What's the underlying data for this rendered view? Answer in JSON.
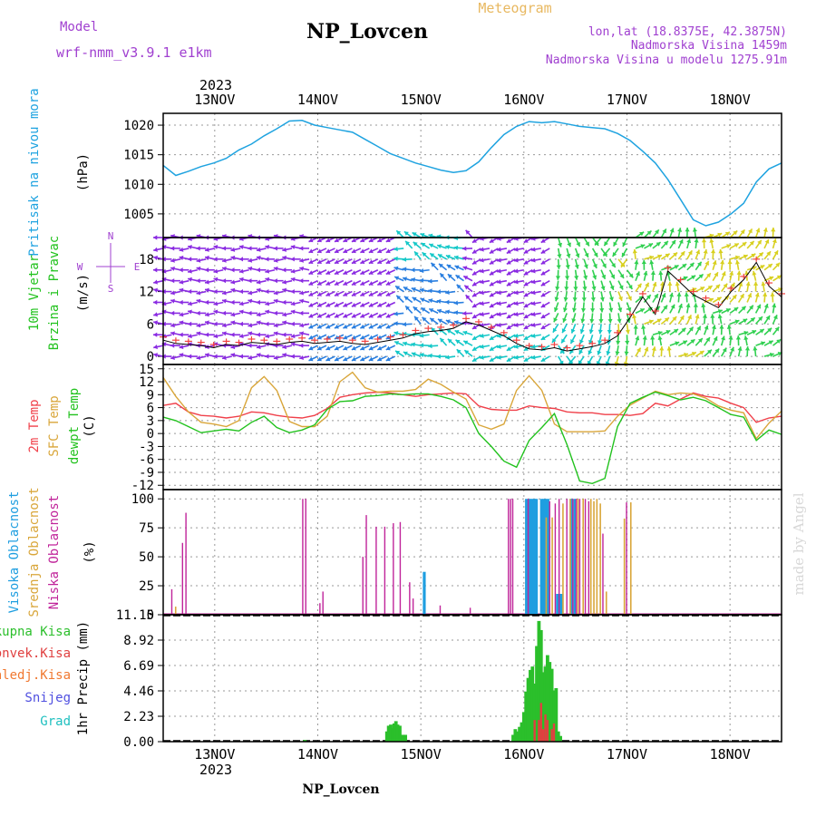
{
  "header": {
    "model_label": "Model",
    "model_value": "wrf-nmm_v3.9.1 e1km",
    "station_title": "NP_Lovcen",
    "meteogram_label": "Meteogram",
    "lonlat": "lon,lat (18.8375E, 42.3875N)",
    "altitude": "Nadmorska Visina 1459m",
    "model_altitude": "Nadmorska Visina u modelu 1275.91m"
  },
  "footer": {
    "station": "NP_Lovcen",
    "credit": "made by Angel"
  },
  "colors": {
    "pressure": "#1fa3e0",
    "t2m": "#f0404a",
    "sfc": "#d9a63a",
    "dewpt": "#22c21e",
    "cloud_high": "#1f9ee0",
    "cloud_mid": "#d9a63a",
    "cloud_low": "#c0249a",
    "rain_total": "#2bbf2b",
    "rain_conv": "#e04040",
    "rain_frz": "#f07830",
    "snow": "#5050e0",
    "hail": "#20c0c0",
    "wind_purple": "#8a2be2",
    "wind_blue": "#2a7fe0",
    "wind_cyan": "#14c8c8",
    "wind_green": "#30d050",
    "wind_yellow": "#d8d020",
    "speed_line": "#000000",
    "gust_marks": "#f04040"
  },
  "chart_data": [
    {
      "type": "line",
      "name": "pressure",
      "ylabel_1": "Pritisak na nivou mora",
      "ylabel_2": "(hPa)",
      "yticks": [
        1005,
        1010,
        1015,
        1020
      ],
      "ylim": [
        1001,
        1022
      ],
      "x_hours_start": 0,
      "x_hours_end": 144,
      "x_top_dates": [
        "13NOV",
        "14NOV",
        "15NOV",
        "16NOV",
        "17NOV",
        "18NOV"
      ],
      "x_top_year": "2023",
      "grid": true,
      "series": [
        {
          "values": [
            1013.2,
            1011.5,
            1012.2,
            1013.0,
            1013.6,
            1014.4,
            1015.8,
            1016.8,
            1018.2,
            1019.4,
            1020.7,
            1020.8,
            1020.0,
            1019.6,
            1019.2,
            1018.8,
            1017.6,
            1016.4,
            1015.2,
            1014.4,
            1013.6,
            1013.0,
            1012.4,
            1012.0,
            1012.3,
            1013.8,
            1016.2,
            1018.4,
            1019.8,
            1020.6,
            1020.4,
            1020.6,
            1020.2,
            1019.8,
            1019.6,
            1019.4,
            1018.6,
            1017.4,
            1015.6,
            1013.6,
            1010.8,
            1007.4,
            1004.0,
            1003.0,
            1003.6,
            1005.0,
            1006.8,
            1010.4,
            1012.6,
            1013.6
          ]
        }
      ]
    },
    {
      "type": "wind",
      "name": "wind",
      "ylabel_1": "10m Vjetar",
      "ylabel_2": "Brzina i Pravac",
      "ylabel_3": "(m/s)",
      "compass": [
        "N",
        "E",
        "S",
        "W"
      ],
      "yticks": [
        0,
        6,
        12,
        18
      ],
      "ylim": [
        -1.5,
        22
      ],
      "levels": [
        0,
        2,
        4,
        6,
        8,
        10,
        12,
        14,
        16,
        18,
        20,
        22
      ],
      "speed": [
        3.0,
        2.4,
        2.2,
        2.0,
        1.6,
        2.2,
        2.0,
        2.6,
        2.4,
        2.2,
        2.6,
        2.8,
        2.4,
        2.6,
        2.8,
        2.4,
        2.2,
        2.6,
        3.0,
        3.4,
        4.2,
        4.6,
        4.8,
        5.2,
        6.4,
        5.8,
        4.8,
        3.8,
        2.4,
        1.4,
        1.2,
        1.6,
        1.0,
        1.4,
        1.8,
        2.4,
        3.8,
        7.2,
        11.0,
        7.8,
        15.8,
        13.6,
        11.4,
        10.2,
        9.0,
        12.0,
        14.2,
        17.4,
        13.0,
        11.0
      ]
    },
    {
      "type": "line",
      "name": "temperature",
      "ylabel_1": "2m Temp",
      "ylabel_2": "SFC Temp",
      "ylabel_3": "dewpt Temp",
      "ylabel_4": "(C)",
      "yticks": [
        -12,
        -9,
        -6,
        -3,
        0,
        3,
        6,
        9,
        12,
        15
      ],
      "ylim": [
        -13,
        16
      ],
      "grid": true,
      "series": [
        {
          "key": "t2m",
          "values": [
            6.5,
            7.0,
            5.0,
            4.2,
            4.0,
            3.6,
            4.0,
            5.0,
            4.8,
            4.2,
            3.8,
            3.6,
            4.2,
            5.8,
            8.4,
            9.0,
            9.4,
            9.6,
            9.4,
            9.0,
            8.6,
            9.0,
            9.2,
            9.4,
            9.2,
            6.4,
            5.6,
            5.4,
            5.4,
            6.4,
            6.0,
            5.8,
            5.0,
            4.8,
            4.8,
            4.4,
            4.4,
            4.2,
            4.6,
            7.0,
            6.4,
            8.0,
            9.4,
            8.6,
            8.2,
            7.0,
            6.0,
            2.6,
            3.6,
            4.0
          ]
        },
        {
          "key": "sfc",
          "values": [
            13.0,
            8.6,
            5.0,
            2.6,
            2.2,
            1.6,
            3.0,
            10.6,
            13.2,
            10.0,
            2.8,
            1.6,
            1.6,
            4.0,
            12.0,
            14.2,
            10.6,
            9.6,
            9.8,
            9.8,
            10.2,
            12.6,
            11.4,
            9.6,
            8.0,
            2.0,
            1.0,
            2.2,
            10.0,
            13.4,
            10.0,
            2.2,
            0.4,
            0.4,
            0.4,
            0.6,
            4.0,
            6.6,
            8.2,
            9.8,
            9.0,
            9.4,
            9.2,
            8.2,
            6.4,
            5.4,
            4.8,
            -1.2,
            2.4,
            5.2
          ]
        },
        {
          "key": "dewpt",
          "values": [
            3.8,
            3.0,
            1.6,
            0.2,
            0.6,
            1.0,
            0.6,
            2.6,
            4.0,
            1.4,
            0.2,
            0.8,
            2.0,
            5.6,
            7.4,
            7.6,
            8.6,
            8.8,
            9.2,
            9.0,
            9.2,
            9.2,
            8.6,
            7.8,
            6.0,
            0.0,
            -3.0,
            -6.4,
            -7.8,
            -1.6,
            1.4,
            4.6,
            -2.6,
            -11.0,
            -11.6,
            -10.4,
            1.6,
            7.0,
            8.4,
            9.6,
            8.8,
            7.8,
            8.4,
            7.6,
            6.0,
            4.4,
            3.8,
            -1.6,
            0.8,
            -0.2
          ]
        }
      ]
    },
    {
      "type": "bar",
      "name": "clouds",
      "ylabel_1": "Visoka Oblacnost",
      "ylabel_2": "Srednja Oblacnost",
      "ylabel_3": "Niska Oblacnost",
      "ylabel_4": "(%)",
      "yticks": [
        0,
        25,
        50,
        75,
        100
      ],
      "ylim": [
        0,
        108
      ],
      "grid": true,
      "low_bars": [
        [
          2.0,
          22
        ],
        [
          4.5,
          62
        ],
        [
          5.3,
          88
        ],
        [
          32.5,
          100
        ],
        [
          33.2,
          100
        ],
        [
          36.5,
          10
        ],
        [
          37.2,
          20
        ],
        [
          46.5,
          50
        ],
        [
          47.3,
          86
        ],
        [
          49.6,
          76
        ],
        [
          51.6,
          76
        ],
        [
          53.6,
          79
        ],
        [
          55.2,
          80
        ],
        [
          57.4,
          28
        ],
        [
          58.2,
          14
        ],
        [
          64.5,
          8
        ],
        [
          71.5,
          6
        ],
        [
          80.4,
          100
        ],
        [
          80.9,
          100
        ],
        [
          81.4,
          100
        ],
        [
          85.0,
          100
        ],
        [
          90.0,
          98
        ],
        [
          91.3,
          96
        ],
        [
          92.2,
          100
        ],
        [
          94.0,
          100
        ],
        [
          95.4,
          100
        ],
        [
          96.2,
          100
        ],
        [
          97.0,
          100
        ],
        [
          98.3,
          100
        ],
        [
          99.1,
          98
        ],
        [
          102.4,
          70
        ],
        [
          107.9,
          97
        ]
      ],
      "mid_bars": [
        [
          2.9,
          7
        ],
        [
          89.2,
          84
        ],
        [
          90.6,
          84
        ],
        [
          93.1,
          96
        ],
        [
          94.8,
          100
        ],
        [
          96.6,
          100
        ],
        [
          97.8,
          100
        ],
        [
          99.6,
          100
        ],
        [
          100.3,
          98
        ],
        [
          101.0,
          100
        ],
        [
          101.8,
          96
        ],
        [
          103.2,
          20
        ],
        [
          107.4,
          83
        ],
        [
          108.9,
          97
        ]
      ],
      "high_bars": [
        [
          60.8,
          37
        ],
        [
          84.6,
          100
        ],
        [
          85.4,
          100
        ],
        [
          85.9,
          100
        ],
        [
          86.4,
          100
        ],
        [
          86.9,
          100
        ],
        [
          88.1,
          100
        ],
        [
          88.6,
          100
        ],
        [
          89.0,
          100
        ],
        [
          89.6,
          100
        ],
        [
          91.8,
          18
        ],
        [
          92.5,
          18
        ],
        [
          92.9,
          18
        ],
        [
          95.0,
          100
        ],
        [
          95.9,
          100
        ]
      ]
    },
    {
      "type": "bar",
      "name": "precip",
      "ylabel_main": "1hr Precip (mm)",
      "legend": [
        "Ukupna Kisa",
        "Konvek.Kisa",
        "Zaledj.Kisa",
        "Snijeg",
        "Grad"
      ],
      "yticks": [
        0,
        2.23,
        4.46,
        6.69,
        8.92,
        11.15
      ],
      "ylim": [
        0,
        11.15
      ],
      "x_bottom_dates": [
        "13NOV",
        "14NOV",
        "15NOV",
        "16NOV",
        "17NOV",
        "18NOV"
      ],
      "x_bottom_year": "2023",
      "total_bars": [
        [
          33.0,
          0.15
        ],
        [
          52.1,
          0.9
        ],
        [
          52.5,
          1.4
        ],
        [
          53.0,
          1.5
        ],
        [
          53.4,
          1.2
        ],
        [
          53.8,
          1.6
        ],
        [
          54.2,
          1.8
        ],
        [
          54.6,
          1.5
        ],
        [
          55.1,
          1.4
        ],
        [
          55.5,
          0.6
        ],
        [
          55.9,
          0.6
        ],
        [
          56.4,
          0.6
        ],
        [
          81.5,
          0.6
        ],
        [
          82.0,
          1.1
        ],
        [
          82.5,
          0.9
        ],
        [
          83.0,
          1.3
        ],
        [
          83.5,
          1.7
        ],
        [
          84.0,
          2.6
        ],
        [
          84.5,
          4.4
        ],
        [
          85.0,
          5.6
        ],
        [
          85.5,
          6.3
        ],
        [
          86.0,
          6.6
        ],
        [
          86.5,
          5.1
        ],
        [
          87.0,
          8.4
        ],
        [
          87.5,
          10.6
        ],
        [
          88.0,
          9.8
        ],
        [
          88.5,
          6.1
        ],
        [
          89.0,
          6.6
        ],
        [
          89.5,
          7.6
        ],
        [
          90.0,
          7.0
        ],
        [
          90.5,
          6.4
        ],
        [
          91.0,
          4.5
        ],
        [
          91.5,
          4.7
        ],
        [
          92.0,
          0.9
        ],
        [
          92.5,
          0.5
        ]
      ],
      "conv_bars": [
        [
          86.5,
          1.9
        ],
        [
          87.5,
          1.9
        ],
        [
          88.0,
          3.4
        ],
        [
          88.5,
          1.1
        ],
        [
          89.0,
          2.4
        ],
        [
          89.5,
          1.9
        ],
        [
          90.5,
          1.1
        ],
        [
          91.0,
          1.6
        ]
      ]
    }
  ]
}
